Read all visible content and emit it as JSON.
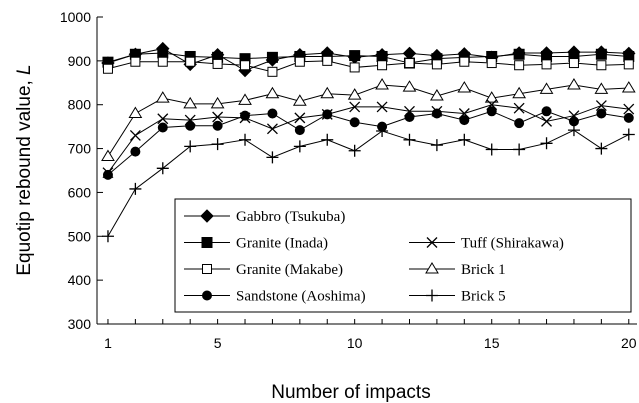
{
  "chart_data": {
    "type": "line",
    "title": "",
    "xlabel": "Number of impacts",
    "ylabel": "Equotip rebound value, ",
    "ylabel_symbol": "L",
    "xlim": [
      0.6,
      20.3
    ],
    "ylim": [
      300,
      1000
    ],
    "xticks": [
      1,
      5,
      10,
      15,
      20
    ],
    "yticks": [
      300,
      400,
      500,
      600,
      700,
      800,
      900,
      1000
    ],
    "grid": false,
    "legend_position": "lower-right",
    "x": [
      1,
      2,
      3,
      4,
      5,
      6,
      7,
      8,
      9,
      10,
      11,
      12,
      13,
      14,
      15,
      16,
      17,
      18,
      19,
      20
    ],
    "series": [
      {
        "name": "Gabbro (Tsukuba)",
        "marker": "diamond-filled",
        "values": [
          895,
          915,
          928,
          892,
          914,
          878,
          902,
          914,
          918,
          908,
          914,
          917,
          912,
          916,
          908,
          918,
          918,
          920,
          920,
          917
        ]
      },
      {
        "name": "Granite (Inada)",
        "marker": "square-filled",
        "values": [
          897,
          915,
          918,
          910,
          908,
          905,
          908,
          910,
          910,
          912,
          910,
          895,
          905,
          908,
          910,
          915,
          910,
          910,
          915,
          910
        ]
      },
      {
        "name": "Granite (Makabe)",
        "marker": "square-open",
        "values": [
          882,
          898,
          898,
          898,
          893,
          890,
          875,
          898,
          900,
          885,
          890,
          895,
          892,
          898,
          895,
          890,
          892,
          895,
          890,
          892
        ]
      },
      {
        "name": "Brick 1",
        "marker": "triangle-open",
        "values": [
          682,
          780,
          815,
          802,
          802,
          810,
          825,
          808,
          825,
          822,
          845,
          840,
          820,
          838,
          815,
          825,
          835,
          845,
          835,
          838
        ]
      },
      {
        "name": "Tuff (Shirakawa)",
        "marker": "x",
        "values": [
          645,
          730,
          768,
          765,
          772,
          770,
          745,
          770,
          778,
          795,
          795,
          785,
          785,
          780,
          800,
          792,
          762,
          775,
          798,
          790
        ]
      },
      {
        "name": "Sandstone (Aoshima)",
        "marker": "circle-filled",
        "values": [
          640,
          693,
          748,
          752,
          752,
          775,
          780,
          742,
          778,
          760,
          750,
          772,
          780,
          765,
          785,
          758,
          785,
          762,
          780,
          770
        ]
      },
      {
        "name": "Brick 5",
        "marker": "plus",
        "values": [
          500,
          608,
          655,
          705,
          710,
          720,
          680,
          705,
          720,
          695,
          740,
          720,
          708,
          720,
          698,
          698,
          712,
          742,
          700,
          732
        ]
      }
    ],
    "legend_layout": [
      [
        "Gabbro (Tsukuba)",
        null
      ],
      [
        "Granite (Inada)",
        "Tuff (Shirakawa)"
      ],
      [
        "Granite (Makabe)",
        "Brick 1"
      ],
      [
        "Sandstone (Aoshima)",
        "Brick 5"
      ]
    ]
  }
}
